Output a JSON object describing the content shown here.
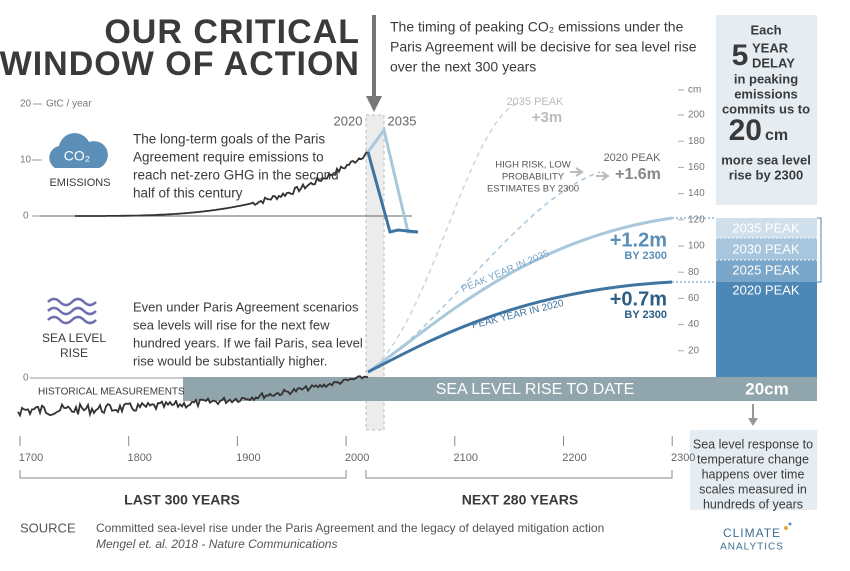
{
  "title": [
    "OUR CRITICAL",
    "WINDOW OF ACTION"
  ],
  "intro": [
    "The timing of peaking CO₂ emissions under the",
    "Paris Agreement will be decisive for sea level rise",
    "over the next 300 years"
  ],
  "delay_box": {
    "each": "Each",
    "years": "5",
    "year": "YEAR",
    "delay": "DELAY",
    "lines": [
      "in peaking",
      "emissions",
      "commits us to"
    ],
    "amount": "20",
    "unit": "cm",
    "lines2": [
      "more sea level",
      "rise by 2300"
    ]
  },
  "emissions": {
    "axis_top": "20",
    "axis_unit": "GtC / year",
    "axis_mid": "10",
    "axis_zero": "0",
    "icon": "CO₂",
    "label": "EMISSIONS",
    "text": [
      "The long-term goals of the Paris",
      "Agreement require emissions to",
      "reach net-zero GHG in the second",
      "half of this century"
    ],
    "peak_2020": "2020",
    "peak_2035": "2035"
  },
  "sea_level": {
    "icon": [
      "SEA LEVEL",
      "RISE"
    ],
    "text": [
      "Even under Paris Agreement scenarios",
      "sea levels will rise for the next few",
      "hundred years. If we fail Paris, sea level",
      "rise would be substantially higher."
    ],
    "axis_zero": "0",
    "historical": "HISTORICAL MEASUREMENTS",
    "to_date": "SEA LEVEL RISE TO DATE",
    "to_date_value": "20cm"
  },
  "projections": {
    "high_peak_2035": "2035 PEAK",
    "high_value_2035": "+3m",
    "high_risk": [
      "HIGH RISK, LOW",
      "PROBABILITY",
      "ESTIMATES BY 2300"
    ],
    "high_peak_2020": "2020 PEAK",
    "high_value_2020": "+1.6m",
    "value_2035": "+1.2m",
    "by_2035": "BY 2300",
    "value_2020": "+0.7m",
    "by_2020": "BY 2300",
    "curve_2035": "PEAK YEAR IN 2035",
    "curve_2020": "PEAK YEAR IN 2020"
  },
  "right_axis": {
    "unit": "cm",
    "ticks": [
      "200",
      "180",
      "160",
      "140",
      "120",
      "100",
      "80",
      "60",
      "40",
      "20"
    ]
  },
  "stack": [
    "2035 PEAK",
    "2030 PEAK",
    "2025 PEAK",
    "2020 PEAK"
  ],
  "x_axis": {
    "ticks": [
      "1700",
      "1800",
      "1900",
      "2000",
      "2100",
      "2200",
      "2300"
    ],
    "past": "LAST 300 YEARS",
    "future": "NEXT 280 YEARS"
  },
  "note": [
    "Sea level response to",
    "temperature change",
    "happens over time",
    "scales measured in",
    "hundreds of years"
  ],
  "source": {
    "label": "SOURCE",
    "line1": "Committed sea-level rise under the Paris Agreement and the legacy of delayed mitigation action",
    "line2": "Mengel et. al. 2018 - Nature Communications"
  },
  "logo": [
    "CLIMATE",
    "ANALYTICS"
  ]
}
